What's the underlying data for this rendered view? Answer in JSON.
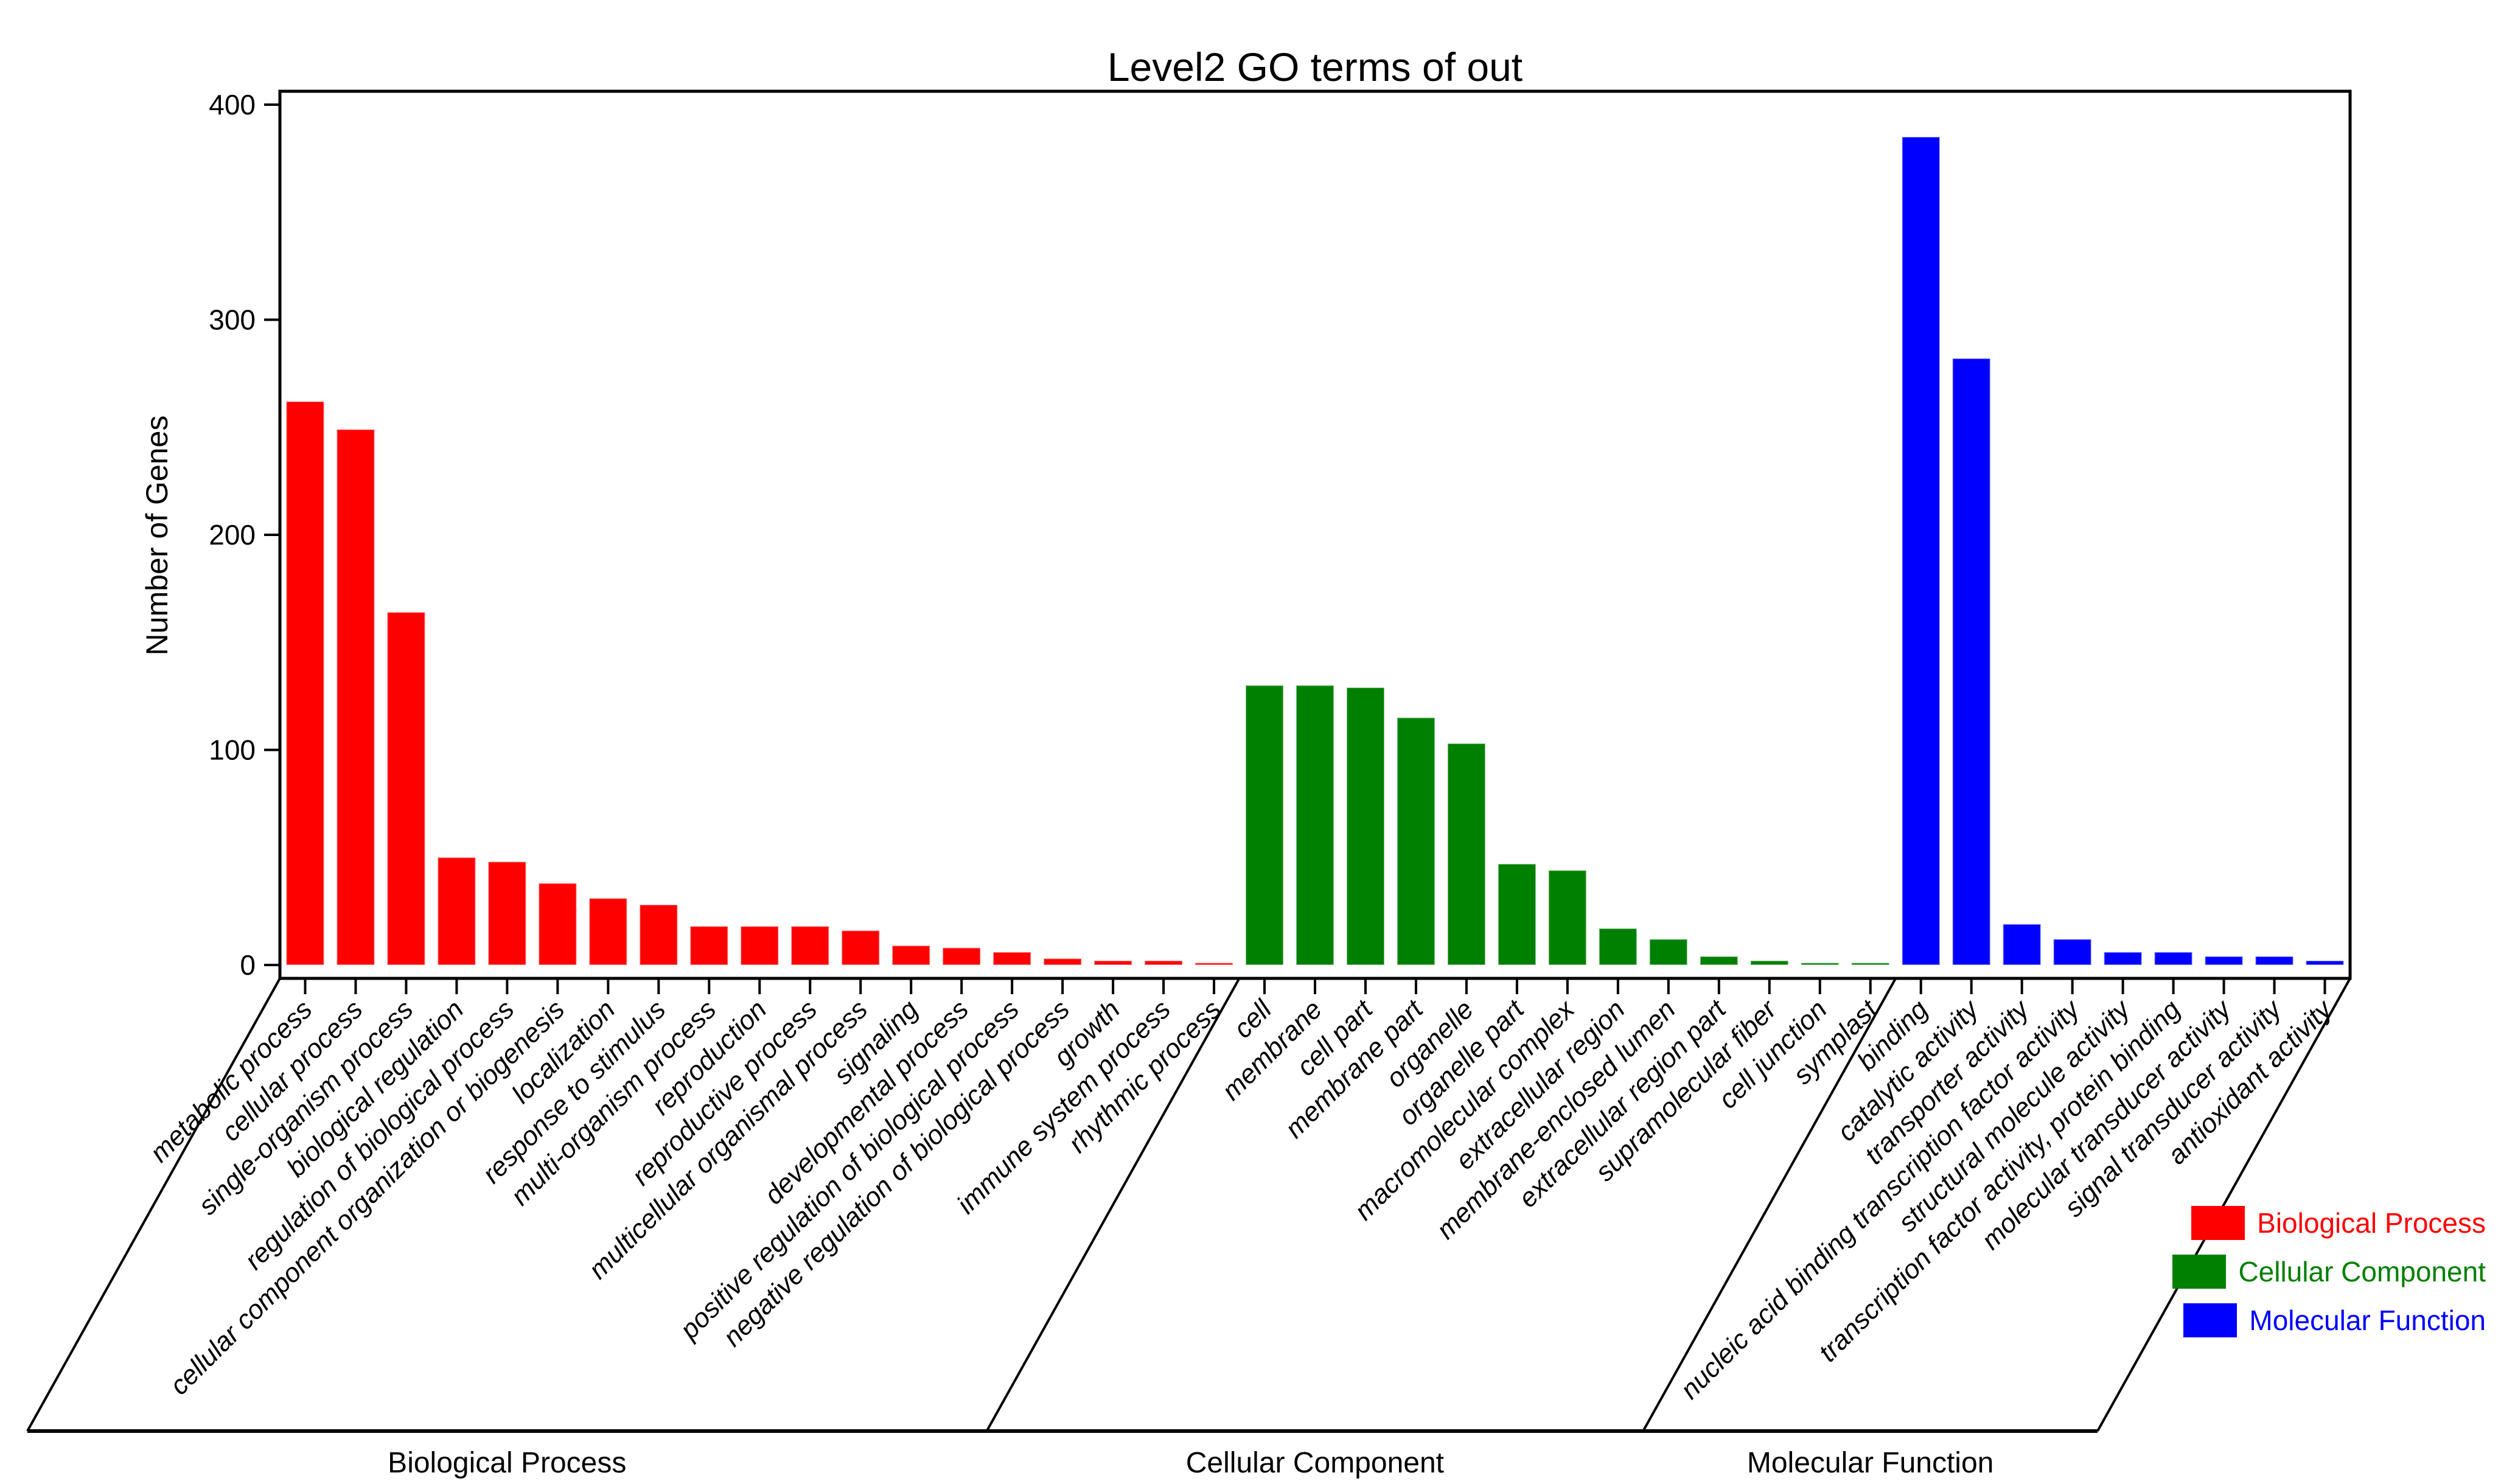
{
  "chart_data": {
    "type": "bar",
    "title": "Level2 GO terms of out",
    "xlabel": "",
    "ylabel": "Number of Genes",
    "ylim": [
      0,
      400
    ],
    "yticks": [
      0,
      100,
      200,
      300,
      400
    ],
    "grid": false,
    "legend_position": "bottom-right",
    "x_tick_label_rotation": 45,
    "groups": [
      {
        "name": "Biological Process",
        "color": "#ff0000",
        "categories": [
          "metabolic process",
          "cellular process",
          "single-organism process",
          "biological regulation",
          "regulation of biological process",
          "cellular component organization or biogenesis",
          "localization",
          "response to stimulus",
          "multi-organism process",
          "reproduction",
          "reproductive process",
          "multicellular organismal process",
          "signaling",
          "developmental process",
          "positive regulation of biological process",
          "negative regulation of biological process",
          "growth",
          "immune system process",
          "rhythmic process"
        ],
        "values": [
          262,
          249,
          164,
          50,
          48,
          38,
          31,
          28,
          18,
          18,
          18,
          16,
          9,
          8,
          6,
          3,
          2,
          2,
          1
        ]
      },
      {
        "name": "Cellular Component",
        "color": "#008000",
        "categories": [
          "cell",
          "membrane",
          "cell part",
          "membrane part",
          "organelle",
          "organelle part",
          "macromolecular complex",
          "extracellular region",
          "membrane-enclosed lumen",
          "extracellular region part",
          "supramolecular fiber",
          "cell junction",
          "symplast"
        ],
        "values": [
          130,
          130,
          129,
          115,
          103,
          47,
          44,
          17,
          12,
          4,
          2,
          1,
          1
        ]
      },
      {
        "name": "Molecular Function",
        "color": "#0000ff",
        "categories": [
          "binding",
          "catalytic activity",
          "transporter activity",
          "nucleic acid binding transcription factor activity",
          "structural molecule activity",
          "transcription factor activity, protein binding",
          "molecular transducer activity",
          "signal transducer activity",
          "antioxidant activity"
        ],
        "values": [
          385,
          282,
          19,
          12,
          6,
          6,
          4,
          4,
          2
        ]
      }
    ]
  }
}
